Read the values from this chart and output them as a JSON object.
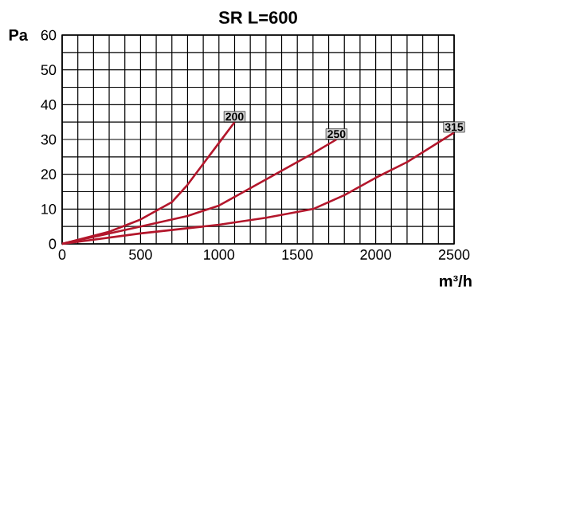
{
  "chart_data": {
    "type": "line",
    "title": "SR L=600",
    "xlabel": "m³/h",
    "ylabel": "Pa",
    "xlim": [
      0,
      2500
    ],
    "ylim": [
      0,
      60
    ],
    "grid": true,
    "marker": "none",
    "line_style": "solid",
    "xticks": [
      0,
      {
        "value": 100,
        "label": null
      },
      {
        "value": 200,
        "label": null
      },
      {
        "value": 300,
        "label": null
      },
      {
        "value": 400,
        "label": null
      },
      500,
      {
        "value": 600,
        "label": null
      },
      {
        "value": 700,
        "label": null
      },
      {
        "value": 800,
        "label": null
      },
      {
        "value": 900,
        "label": null
      },
      1000,
      {
        "value": 1100,
        "label": null
      },
      {
        "value": 1200,
        "label": null
      },
      {
        "value": 1300,
        "label": null
      },
      {
        "value": 1400,
        "label": null
      },
      1500,
      {
        "value": 1600,
        "label": null
      },
      {
        "value": 1700,
        "label": null
      },
      {
        "value": 1800,
        "label": null
      },
      {
        "value": 1900,
        "label": null
      },
      2000,
      {
        "value": 2100,
        "label": null
      },
      {
        "value": 2200,
        "label": null
      },
      {
        "value": 2300,
        "label": null
      },
      {
        "value": 2400,
        "label": null
      },
      2500
    ],
    "yticks": [
      0,
      {
        "value": 5,
        "label": null
      },
      10,
      {
        "value": 15,
        "label": null
      },
      20,
      {
        "value": 25,
        "label": null
      },
      30,
      {
        "value": 35,
        "label": null
      },
      40,
      {
        "value": 45,
        "label": null
      },
      50,
      {
        "value": 55,
        "label": null
      },
      60
    ],
    "series": [
      {
        "name": "200",
        "color": "#b3162b",
        "x": [
          0,
          300,
          500,
          700,
          800,
          900,
          1000,
          1100
        ],
        "values": [
          0,
          3.5,
          7,
          12,
          17,
          23,
          29,
          35
        ]
      },
      {
        "name": "250",
        "color": "#b3162b",
        "x": [
          0,
          500,
          800,
          1000,
          1200,
          1400,
          1600,
          1750
        ],
        "values": [
          0,
          5,
          8,
          11,
          16,
          21,
          26,
          30
        ]
      },
      {
        "name": "315",
        "color": "#b3162b",
        "x": [
          0,
          500,
          1000,
          1300,
          1600,
          1800,
          2000,
          2200,
          2500
        ],
        "values": [
          0,
          3,
          5.5,
          7.5,
          10,
          14,
          19,
          23.5,
          32
        ]
      }
    ]
  }
}
